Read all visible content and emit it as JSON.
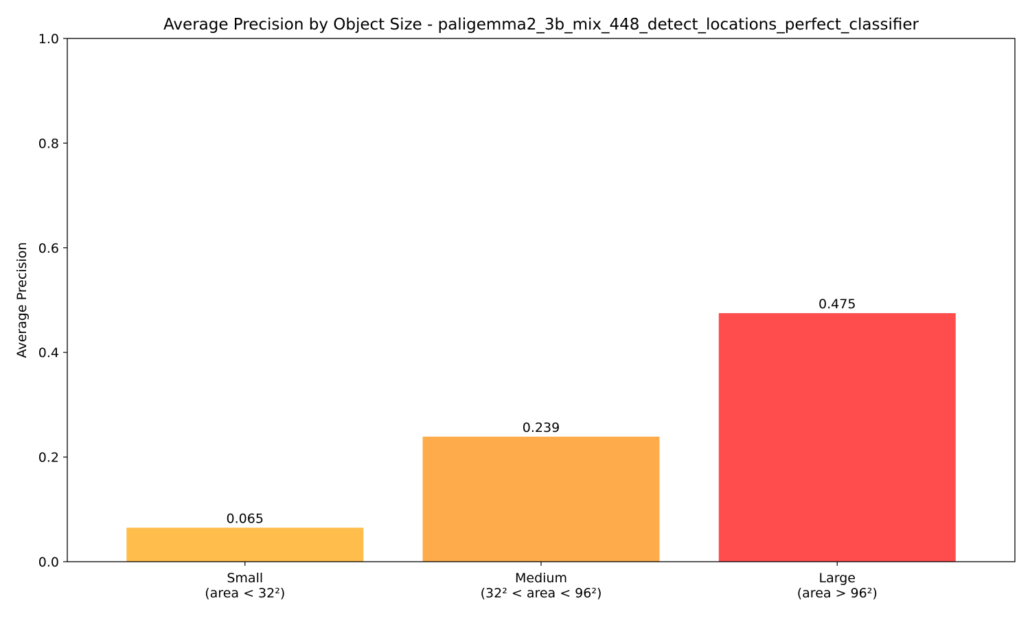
{
  "chart_data": {
    "type": "bar",
    "title": "Average Precision by Object Size - paligemma2_3b_mix_448_detect_locations_perfect_classifier",
    "xlabel": "",
    "ylabel": "Average Precision",
    "ylim": [
      0,
      1.0
    ],
    "yticks": [
      "0.0",
      "0.2",
      "0.4",
      "0.6",
      "0.8",
      "1.0"
    ],
    "categories": [
      {
        "line1": "Small",
        "line2": "(area < 32²)"
      },
      {
        "line1": "Medium",
        "line2": "(32² < area < 96²)"
      },
      {
        "line1": "Large",
        "line2": "(area > 96²)"
      }
    ],
    "values": [
      0.065,
      0.239,
      0.475
    ],
    "value_labels": [
      "0.065",
      "0.239",
      "0.475"
    ],
    "colors": [
      "#FFBE4C",
      "#FEAC4B",
      "#FF4C4C"
    ],
    "grid": false,
    "legend": "none"
  }
}
